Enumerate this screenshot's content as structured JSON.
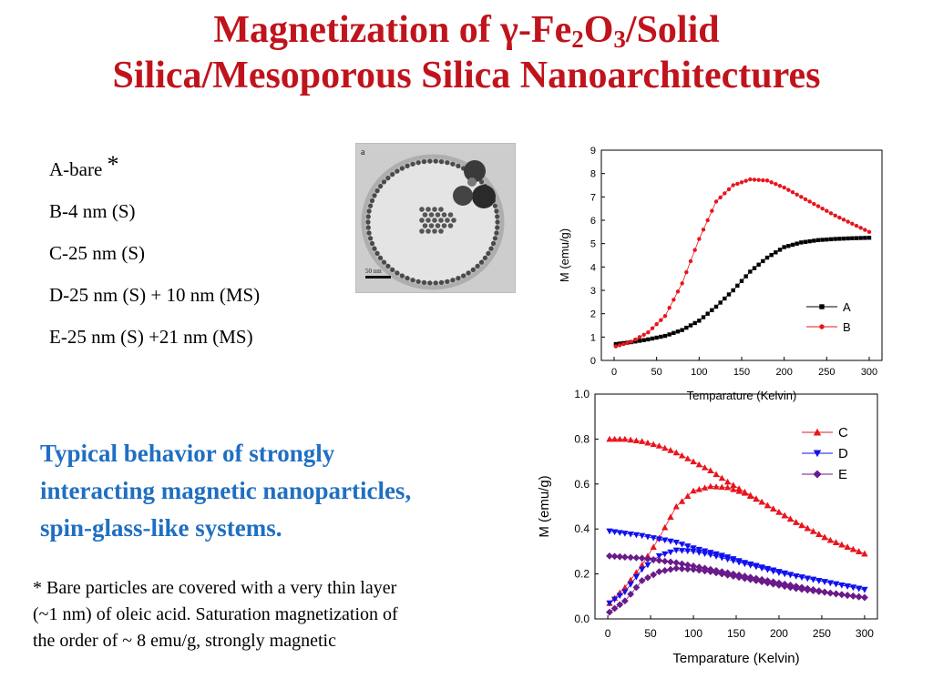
{
  "title": {
    "part1": "Magnetization of γ-Fe",
    "sub1": "2",
    "part2": "O",
    "sub2": "3",
    "part3": "/Solid",
    "line2": "Silica/Mesoporous Silica Nanoarchitectures"
  },
  "samples": {
    "a": "A-bare",
    "a_mark": "*",
    "b": "B-4 nm (S)",
    "c": "C-25 nm (S)",
    "d": "D-25 nm (S)  + 10 nm (MS)",
    "e": "E-25 nm (S) +21 nm (MS)"
  },
  "tem_image": {
    "panel_label": "a",
    "scale_label": "50 nm"
  },
  "highlight": {
    "line1": "Typical behavior of strongly",
    "line2": "interacting magnetic nanoparticles,",
    "line3": "spin-glass-like systems."
  },
  "footnote": {
    "line1": "* Bare particles are covered with a very thin layer",
    "line2": "(~1 nm) of  oleic acid.  Saturation magnetization of",
    "line3": "the order of  ~ 8 emu/g, strongly magnetic"
  },
  "colors": {
    "title": "#c0141c",
    "highlight": "#1f6fc2",
    "series_black": "#000000",
    "series_red": "#e8141c",
    "series_blue": "#1010f0",
    "series_purple": "#6a1a8a"
  },
  "chart_data": [
    {
      "type": "scatter",
      "xlabel": "Temparature (Kelvin)",
      "ylabel": "M (emu/g)",
      "xlim": [
        -15,
        315
      ],
      "ylim": [
        0,
        9
      ],
      "xticks": [
        "0",
        "50",
        "100",
        "150",
        "200",
        "250",
        "300"
      ],
      "yticks": [
        "0",
        "1",
        "2",
        "3",
        "4",
        "5",
        "6",
        "7",
        "8",
        "9"
      ],
      "legend_position": "bottom-right",
      "series": [
        {
          "name": "A",
          "marker": "square",
          "color": "#000000",
          "x": [
            2,
            20,
            40,
            60,
            80,
            100,
            120,
            140,
            160,
            180,
            200,
            220,
            240,
            260,
            280,
            300
          ],
          "y": [
            0.7,
            0.78,
            0.9,
            1.05,
            1.3,
            1.7,
            2.3,
            3.0,
            3.8,
            4.4,
            4.85,
            5.05,
            5.15,
            5.2,
            5.23,
            5.25
          ]
        },
        {
          "name": "B",
          "marker": "circle",
          "color": "#e8141c",
          "x": [
            2,
            20,
            40,
            60,
            80,
            100,
            120,
            140,
            160,
            180,
            200,
            220,
            240,
            260,
            280,
            300
          ],
          "y": [
            0.6,
            0.8,
            1.2,
            1.9,
            3.3,
            5.2,
            6.8,
            7.5,
            7.75,
            7.7,
            7.4,
            7.0,
            6.6,
            6.2,
            5.85,
            5.5
          ]
        }
      ]
    },
    {
      "type": "scatter",
      "xlabel": "Temparature (Kelvin)",
      "ylabel": "M (emu/g)",
      "xlim": [
        -15,
        315
      ],
      "ylim": [
        0,
        1.0
      ],
      "xticks": [
        "0",
        "50",
        "100",
        "150",
        "200",
        "250",
        "300"
      ],
      "yticks": [
        "0.0",
        "0.2",
        "0.4",
        "0.6",
        "0.8",
        "1.0"
      ],
      "legend_position": "top-right",
      "series": [
        {
          "name": "C",
          "marker": "triangle-up",
          "color": "#e8141c",
          "x": [
            2,
            20,
            40,
            60,
            80,
            100,
            120,
            140,
            160,
            180,
            200,
            220,
            240,
            260,
            280,
            300
          ],
          "y": [
            0.07,
            0.14,
            0.24,
            0.36,
            0.5,
            0.57,
            0.59,
            0.585,
            0.56,
            0.52,
            0.475,
            0.43,
            0.39,
            0.35,
            0.32,
            0.29
          ]
        },
        {
          "name": "D",
          "marker": "triangle-down",
          "color": "#1010f0",
          "x": [
            2,
            20,
            40,
            60,
            80,
            100,
            120,
            140,
            160,
            180,
            200,
            220,
            240,
            260,
            280,
            300
          ],
          "y": [
            0.07,
            0.12,
            0.22,
            0.28,
            0.305,
            0.3,
            0.285,
            0.265,
            0.245,
            0.225,
            0.205,
            0.19,
            0.175,
            0.16,
            0.145,
            0.13
          ]
        },
        {
          "name": "E",
          "marker": "diamond",
          "color": "#6a1a8a",
          "x": [
            2,
            20,
            40,
            60,
            80,
            100,
            120,
            140,
            160,
            180,
            200,
            220,
            240,
            260,
            280,
            300
          ],
          "y": [
            0.03,
            0.08,
            0.17,
            0.21,
            0.225,
            0.22,
            0.21,
            0.195,
            0.18,
            0.165,
            0.15,
            0.135,
            0.125,
            0.115,
            0.105,
            0.095
          ]
        },
        {
          "name": "",
          "marker": "triangle-up",
          "color": "#e8141c",
          "x": [
            2,
            20,
            40,
            60,
            80,
            100,
            120,
            140,
            160,
            180,
            200,
            220,
            240,
            260,
            280,
            300
          ],
          "y": [
            0.8,
            0.8,
            0.79,
            0.77,
            0.74,
            0.7,
            0.66,
            0.61,
            0.565,
            0.52,
            0.475,
            0.43,
            0.39,
            0.35,
            0.32,
            0.29
          ]
        },
        {
          "name": "",
          "marker": "triangle-down",
          "color": "#1010f0",
          "x": [
            2,
            20,
            40,
            60,
            80,
            100,
            120,
            140,
            160,
            180,
            200,
            220,
            240,
            260,
            280,
            300
          ],
          "y": [
            0.39,
            0.38,
            0.37,
            0.355,
            0.34,
            0.315,
            0.295,
            0.275,
            0.25,
            0.23,
            0.21,
            0.19,
            0.175,
            0.16,
            0.145,
            0.13
          ]
        },
        {
          "name": "",
          "marker": "diamond",
          "color": "#6a1a8a",
          "x": [
            2,
            20,
            40,
            60,
            80,
            100,
            120,
            140,
            160,
            180,
            200,
            220,
            240,
            260,
            280,
            300
          ],
          "y": [
            0.28,
            0.275,
            0.27,
            0.26,
            0.25,
            0.235,
            0.22,
            0.205,
            0.19,
            0.175,
            0.16,
            0.145,
            0.13,
            0.115,
            0.105,
            0.095
          ]
        }
      ]
    }
  ]
}
